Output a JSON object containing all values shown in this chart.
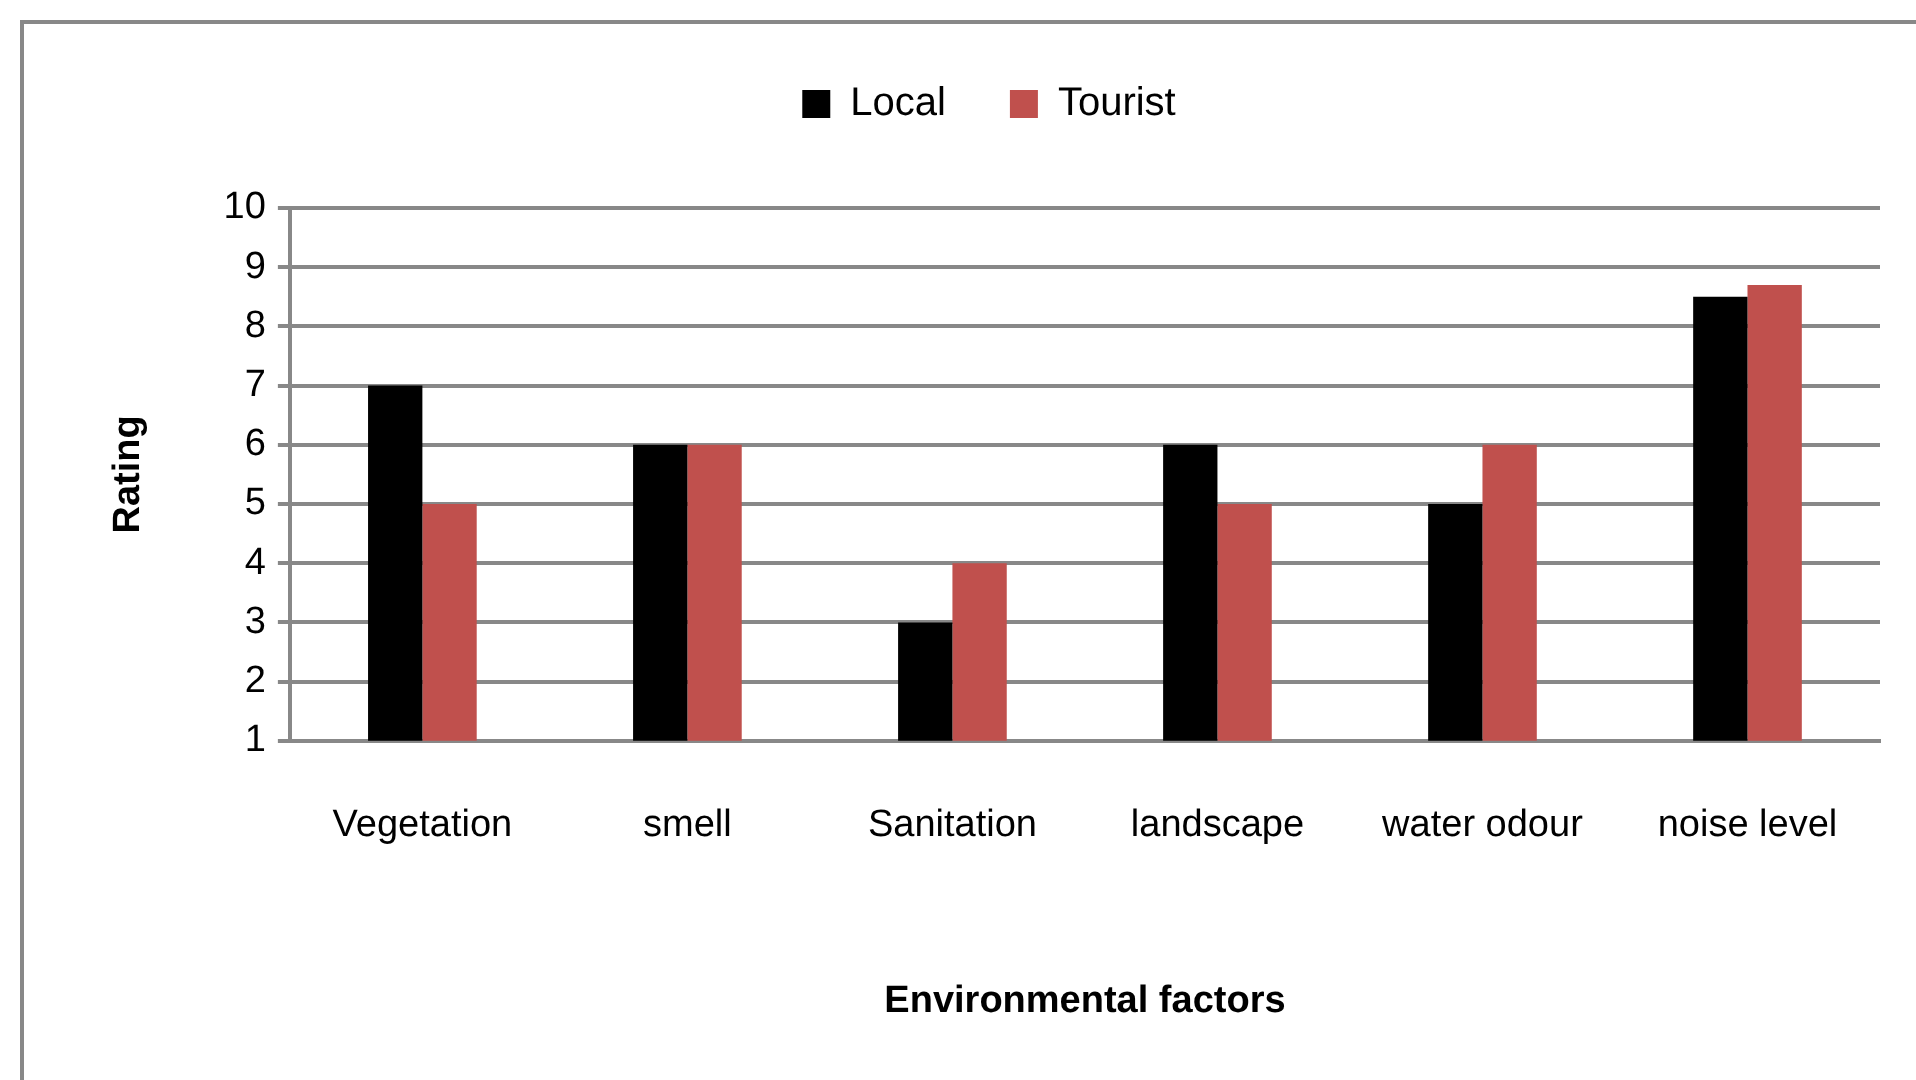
{
  "chart_data": {
    "type": "bar",
    "xlabel": "Environmental factors",
    "ylabel": "Rating",
    "categories": [
      "Vegetation",
      "smell",
      "Sanitation",
      "landscape",
      "water odour",
      "noise level"
    ],
    "series": [
      {
        "name": "Local",
        "color": "#000000",
        "values": [
          7,
          6,
          3,
          6,
          5,
          8.5
        ]
      },
      {
        "name": "Tourist",
        "color": "#c0504d",
        "values": [
          5,
          6,
          4,
          5,
          6,
          8.7
        ]
      }
    ],
    "ylim": [
      1,
      10
    ],
    "yticks": [
      1,
      2,
      3,
      4,
      5,
      6,
      7,
      8,
      9,
      10
    ],
    "grid": "y",
    "legend": "top"
  }
}
